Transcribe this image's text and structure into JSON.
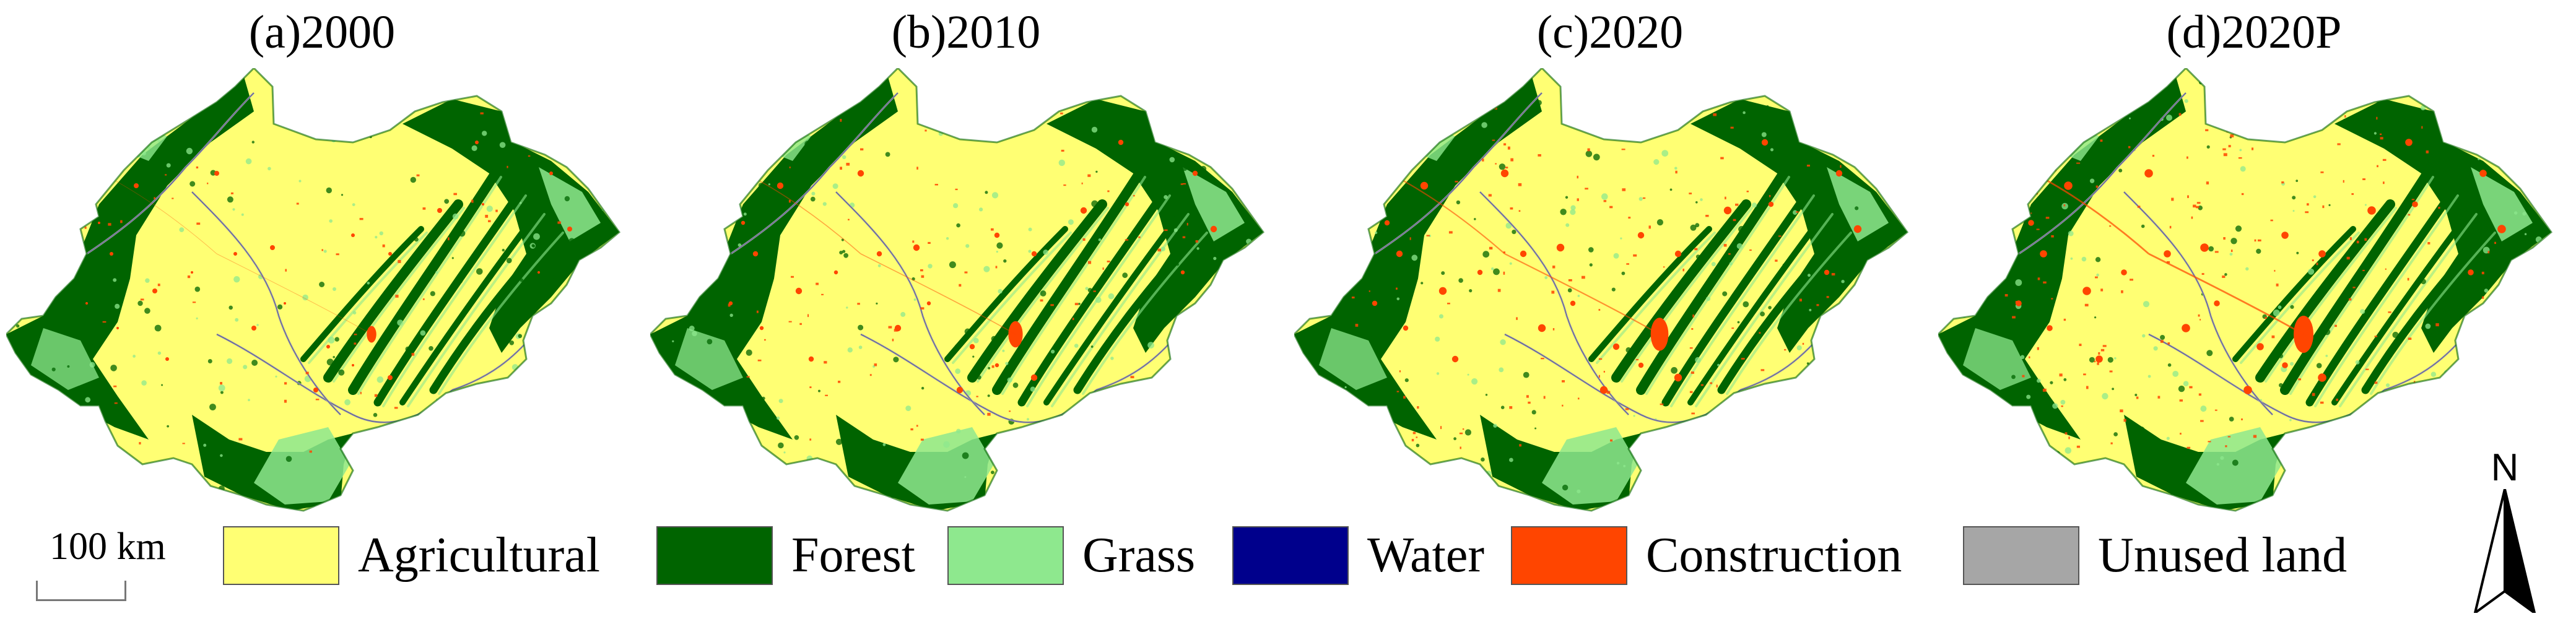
{
  "panels": [
    {
      "id": "a",
      "title": "(a)2000"
    },
    {
      "id": "b",
      "title": "(b)2010"
    },
    {
      "id": "c",
      "title": "(c)2020"
    },
    {
      "id": "d",
      "title": "(d)2020P"
    }
  ],
  "legend": [
    {
      "label": "Agricultural",
      "color": "#ffff73"
    },
    {
      "label": "Forest",
      "color": "#006400"
    },
    {
      "label": "Grass",
      "color": "#8ee88e"
    },
    {
      "label": "Water",
      "color": "#00008c"
    },
    {
      "label": "Construction",
      "color": "#ff4500"
    },
    {
      "label": "Unused land",
      "color": "#a6a6a6"
    }
  ],
  "scale_bar": {
    "label": "100 km"
  },
  "north_arrow": {
    "label": "N"
  }
}
